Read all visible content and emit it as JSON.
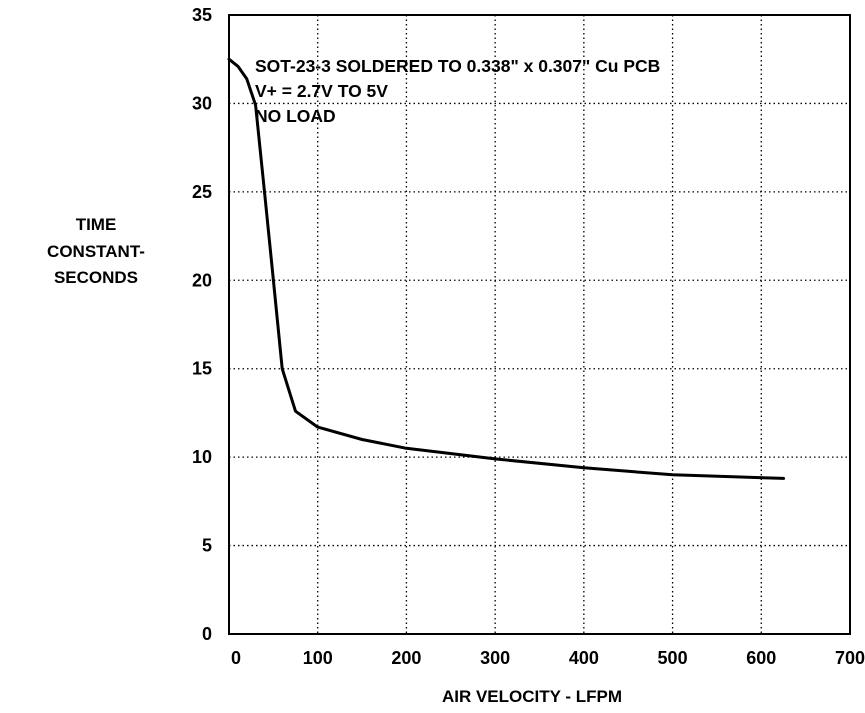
{
  "chart_data": {
    "type": "line",
    "title": "",
    "xlabel": "AIR VELOCITY - LFPM",
    "ylabel_lines": [
      "TIME",
      "CONSTANT-",
      "SECONDS"
    ],
    "xlim": [
      0,
      700
    ],
    "ylim": [
      0,
      35
    ],
    "xticks": [
      "0",
      "100",
      "200",
      "300",
      "400",
      "500",
      "600",
      "700"
    ],
    "yticks": [
      "0",
      "5",
      "10",
      "15",
      "20",
      "25",
      "30",
      "35"
    ],
    "grid": true,
    "annotations": [
      "SOT-23-3 SOLDERED TO 0.338\" x 0.307\" Cu PCB",
      "V+ = 2.7V TO 5V",
      "NO LOAD"
    ],
    "series": [
      {
        "x": [
          0,
          10,
          20,
          30,
          40,
          50,
          60,
          75,
          100,
          150,
          200,
          300,
          400,
          500,
          625
        ],
        "y": [
          32.5,
          32.1,
          31.4,
          29.9,
          25.0,
          20.0,
          15.0,
          12.6,
          11.7,
          11.0,
          10.5,
          9.9,
          9.4,
          9.0,
          8.8
        ]
      }
    ]
  }
}
